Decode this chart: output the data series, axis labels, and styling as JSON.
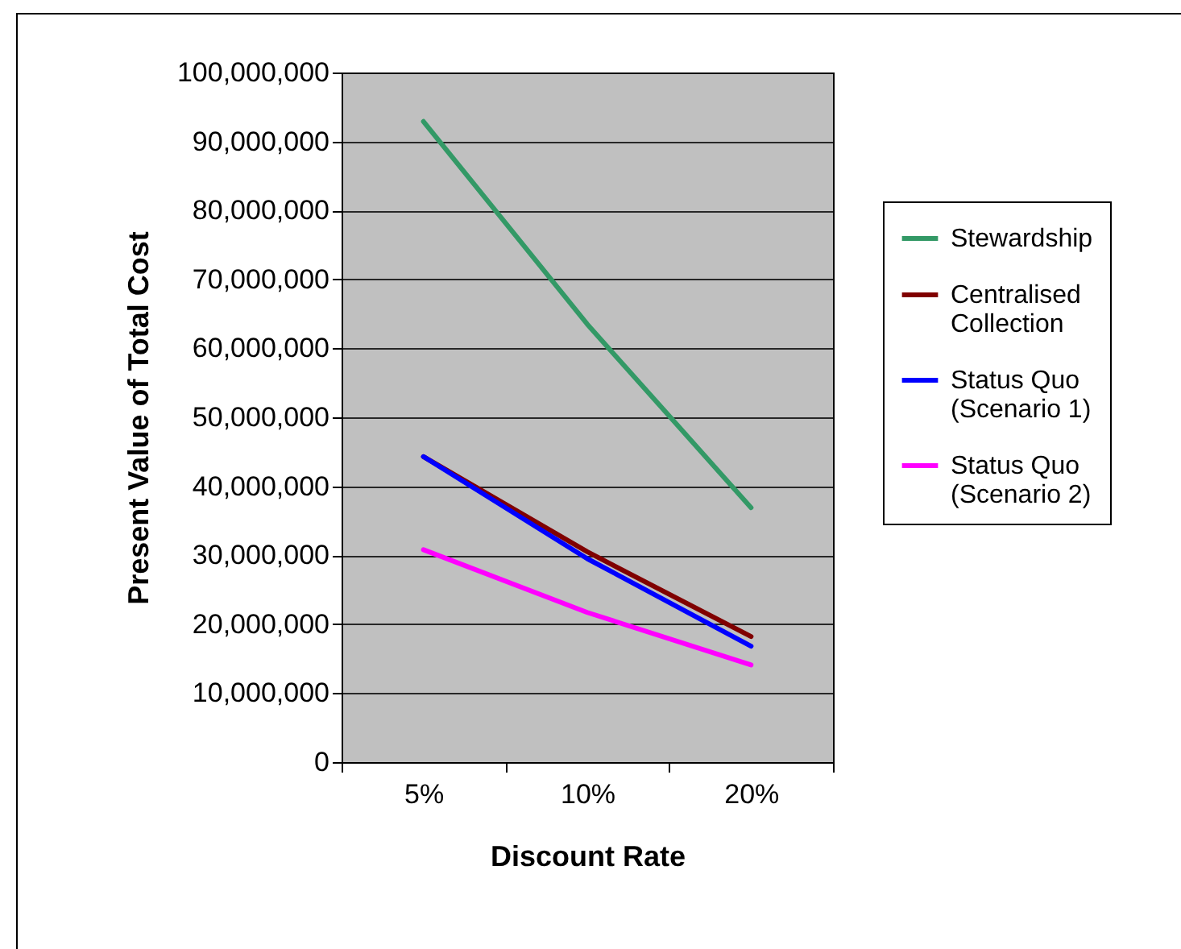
{
  "chart_data": {
    "type": "line",
    "xlabel": "Discount Rate",
    "ylabel": "Present Value of Total Cost",
    "categories": [
      "5%",
      "10%",
      "20%"
    ],
    "series": [
      {
        "name": "Stewardship",
        "color": "#339966",
        "values": [
          92900000,
          63500000,
          36900000
        ]
      },
      {
        "name": "Centralised Collection",
        "color": "#800000",
        "values": [
          44300000,
          30500000,
          18200000
        ]
      },
      {
        "name": "Status Quo (Scenario 1)",
        "color": "#0000ff",
        "values": [
          44300000,
          29500000,
          16800000
        ]
      },
      {
        "name": "Status Quo (Scenario 2)",
        "color": "#ff00ff",
        "values": [
          30800000,
          21700000,
          14100000
        ]
      }
    ],
    "ylim": [
      0,
      100000000
    ],
    "yticks": [
      0,
      {
        "value": 10000000,
        "label": "10,000,000"
      },
      {
        "value": 20000000,
        "label": "20,000,000"
      },
      {
        "value": 30000000,
        "label": "30,000,000"
      },
      {
        "value": 40000000,
        "label": "40,000,000"
      },
      {
        "value": 50000000,
        "label": "50,000,000"
      },
      {
        "value": 60000000,
        "label": "60,000,000"
      },
      {
        "value": 70000000,
        "label": "70,000,000"
      },
      {
        "value": 80000000,
        "label": "80,000,000"
      },
      {
        "value": 90000000,
        "label": "90,000,000"
      },
      {
        "value": 100000000,
        "label": "100,000,000"
      }
    ],
    "grid": "y",
    "legend": "right",
    "marker": "none",
    "line_style": "solid"
  }
}
